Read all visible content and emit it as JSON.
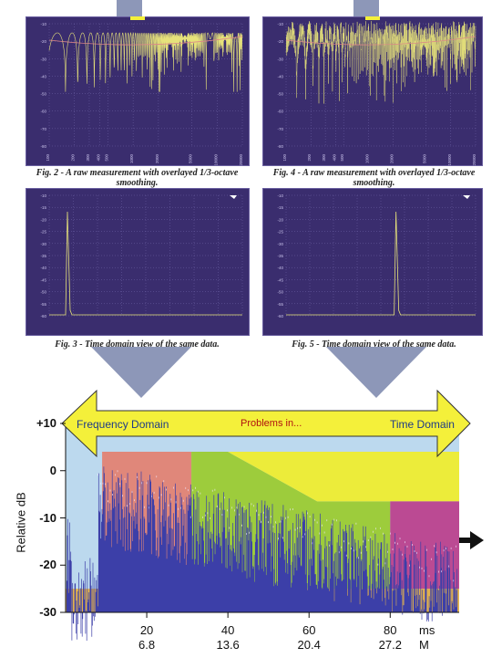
{
  "figures": [
    {
      "id": "fig2",
      "caption": "Fig. 2 - A raw measurement with overlayed 1/3-octave smoothing.",
      "view": "frequency",
      "x_ticks": [
        "100",
        "200",
        "300",
        "400",
        "500",
        "1000",
        "2000",
        "5000",
        "10000",
        "20000"
      ],
      "y_ticks": [
        "-10",
        "-20",
        "-30",
        "-40",
        "-50",
        "-60",
        "-70",
        "-80"
      ]
    },
    {
      "id": "fig4",
      "caption": "Fig. 4 - A raw measurement with overlayed 1/3-octave smoothing.",
      "view": "frequency",
      "x_ticks": [
        "100",
        "200",
        "300",
        "400",
        "500",
        "1000",
        "2000",
        "5000",
        "10000",
        "20000"
      ],
      "y_ticks": [
        "-10",
        "-20",
        "-30",
        "-40",
        "-50",
        "-60",
        "-70",
        "-80"
      ]
    },
    {
      "id": "fig3",
      "caption": "Fig. 3 - Time domain view of the same data.",
      "view": "time",
      "y_ticks": [
        "-10",
        "-15",
        "-20",
        "-25",
        "-30",
        "-35",
        "-40",
        "-45",
        "-50",
        "-55",
        "-60"
      ]
    },
    {
      "id": "fig5",
      "caption": "Fig. 5 - Time domain view of the same data.",
      "view": "time",
      "y_ticks": [
        "-10",
        "-15",
        "-20",
        "-25",
        "-30",
        "-35",
        "-40",
        "-45",
        "-50",
        "-55",
        "-60"
      ]
    }
  ],
  "banner": {
    "left_label": "Frequency Domain",
    "center_label": "Problems in...",
    "right_label": "Time Domain"
  },
  "chart_data": {
    "type": "area",
    "ylabel": "Relative dB",
    "y_ticks": [
      "+10",
      "0",
      "-10",
      "-20",
      "-30"
    ],
    "ylim": [
      -30,
      10
    ],
    "x_ticks_ms": [
      "20",
      "40",
      "60",
      "80"
    ],
    "x_ticks_m": [
      "6.8",
      "13.6",
      "20.4",
      "27.2"
    ],
    "x_unit_ms": "ms",
    "x_unit_m": "M",
    "regions": [
      {
        "color": "#e0877a",
        "x_from": 9,
        "x_to": 31,
        "y_top": 4
      },
      {
        "color": "#9dcc3c",
        "x_from": 31,
        "x_to": 80,
        "y_top": 4
      },
      {
        "color": "#ecec3a",
        "x_from": 40,
        "x_to": 97,
        "y_top": 4
      },
      {
        "color": "#bb4a93",
        "x_from": 80,
        "x_to": 97,
        "y_top": -6.5
      },
      {
        "color": "#dfb050",
        "x_from": 0,
        "x_to": 97,
        "y_top": -25
      }
    ]
  },
  "colors": {
    "panel_bg": "#3a2d6e",
    "trace": "#e6e27a",
    "banner_fill": "#f4f03a",
    "banner_text": "#1e3a88",
    "center_text": "#b01010",
    "sky": "#bcd9ee",
    "big_arrow": "#8d97b8"
  },
  "side_arrow_icon": "right-arrow-icon"
}
